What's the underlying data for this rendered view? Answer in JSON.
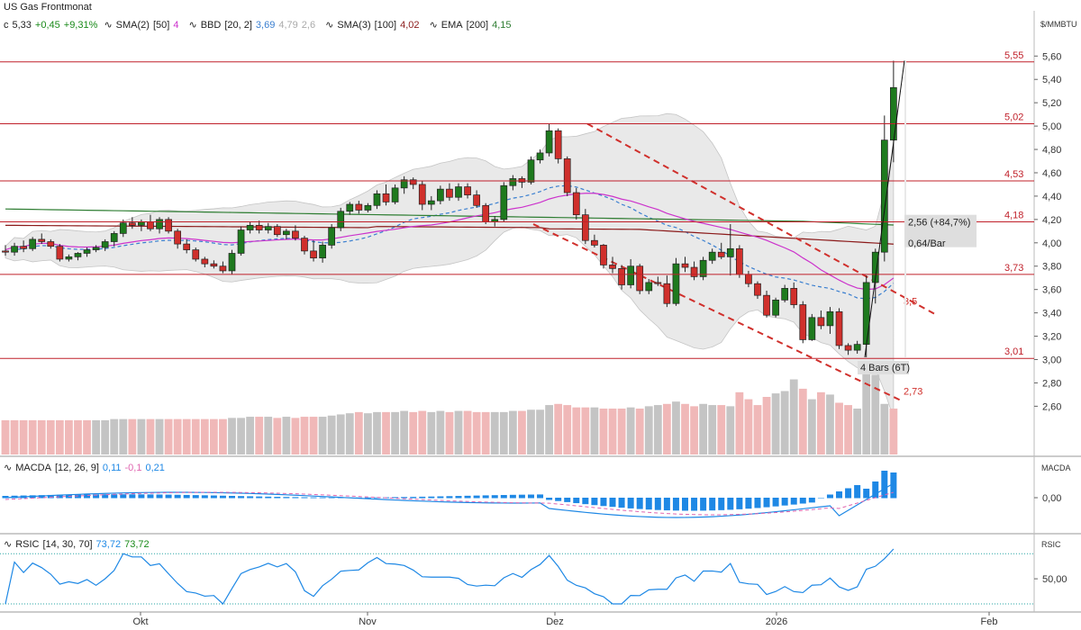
{
  "header": {
    "title": "US Gas Frontmonat",
    "quote_prefix": "c",
    "close": "5,33",
    "change": "+0,45",
    "change_pct": "+9,31%",
    "sma2_label": "SMA(2)",
    "sma2_param": "[50]",
    "sma2_value": "4",
    "bbd_label": "BBD",
    "bbd_param": "[20, 2]",
    "bbd_v1": "3,69",
    "bbd_v2": "4,79",
    "bbd_v3": "2,6",
    "sma3_label": "SMA(3)",
    "sma3_param": "[100]",
    "sma3_value": "4,02",
    "ema_label": "EMA",
    "ema_param": "[200]",
    "ema_value": "4,15",
    "unit": "$/MMBTU"
  },
  "colors": {
    "up": "#1e7a1e",
    "down": "#d0302c",
    "hline": "#c0202a",
    "sma50": "#cc33cc",
    "bb_mid": "#3a7fd0",
    "sma100": "#8b1a1a",
    "ema200": "#2e7d32",
    "vol_up": "#c4c4c4",
    "vol_down": "#f0b8b8",
    "macd_hist": "#1e88e5",
    "macd_signal": "#e066b0",
    "rsi": "#1e88e5",
    "pos_green": "#1a8a1a",
    "neg_red": "#d0302c"
  },
  "price_axis": {
    "ticks": [
      2.6,
      2.8,
      3.0,
      3.2,
      3.4,
      3.6,
      3.8,
      4.0,
      4.2,
      4.4,
      4.6,
      4.8,
      5.0,
      5.2,
      5.4,
      5.6
    ],
    "tick_labels": [
      "2,60",
      "2,80",
      "3,00",
      "3,20",
      "3,40",
      "3,60",
      "3,80",
      "4,00",
      "4,20",
      "4,40",
      "4,60",
      "4,80",
      "5,00",
      "5,20",
      "5,40",
      "5,60"
    ]
  },
  "x_axis": {
    "labels": [
      "Okt",
      "Nov",
      "Dez",
      "2026",
      "Feb"
    ]
  },
  "levels": [
    {
      "value": 5.55,
      "label": "5,55"
    },
    {
      "value": 5.02,
      "label": "5,02"
    },
    {
      "value": 4.53,
      "label": "4,53"
    },
    {
      "value": 4.18,
      "label": "4,18"
    },
    {
      "value": 3.73,
      "label": "3,73"
    },
    {
      "value": 3.01,
      "label": "3,01"
    }
  ],
  "annotations": {
    "move_label": "2,56 (+84,7%)",
    "speed_label": "0,64/Bar",
    "bars_label": "4 Bars (6T)",
    "trend_upper_label": "3,5",
    "trend_lower_label": "2,73"
  },
  "macd_panel": {
    "label": "MACDA",
    "param": "[12, 26, 9]",
    "v1": "0,11",
    "v2": "-0,1",
    "v3": "0,21",
    "axis_title": "MACDA",
    "tick_label": "0,00"
  },
  "rsi_panel": {
    "label": "RSIC",
    "param": "[14, 30, 70]",
    "v1": "73,72",
    "v2": "73,72",
    "axis_title": "RSIC",
    "tick_label": "50,00"
  },
  "chart_data": {
    "type": "candlestick",
    "title": "US Gas Frontmonat",
    "ylabel": "$/MMBTU",
    "ylim": [
      2.45,
      5.65
    ],
    "candles": [
      [
        3.93,
        3.98,
        3.89,
        3.92
      ],
      [
        3.92,
        4.0,
        3.89,
        3.97
      ],
      [
        3.97,
        4.02,
        3.92,
        3.95
      ],
      [
        3.95,
        4.05,
        3.93,
        4.03
      ],
      [
        4.03,
        4.08,
        3.99,
        4.01
      ],
      [
        4.01,
        4.03,
        3.95,
        3.97
      ],
      [
        3.97,
        3.99,
        3.84,
        3.86
      ],
      [
        3.86,
        3.9,
        3.84,
        3.88
      ],
      [
        3.88,
        3.92,
        3.85,
        3.91
      ],
      [
        3.91,
        3.96,
        3.88,
        3.94
      ],
      [
        3.94,
        3.98,
        3.92,
        3.96
      ],
      [
        3.96,
        4.03,
        3.93,
        4.01
      ],
      [
        4.01,
        4.1,
        3.97,
        4.08
      ],
      [
        4.08,
        4.2,
        4.05,
        4.17
      ],
      [
        4.17,
        4.22,
        4.12,
        4.15
      ],
      [
        4.15,
        4.2,
        4.1,
        4.18
      ],
      [
        4.18,
        4.24,
        4.1,
        4.12
      ],
      [
        4.12,
        4.22,
        4.08,
        4.2
      ],
      [
        4.2,
        4.22,
        4.08,
        4.1
      ],
      [
        4.1,
        4.12,
        3.95,
        3.99
      ],
      [
        3.99,
        4.03,
        3.91,
        3.94
      ],
      [
        3.94,
        3.96,
        3.84,
        3.86
      ],
      [
        3.86,
        3.88,
        3.79,
        3.82
      ],
      [
        3.82,
        3.85,
        3.78,
        3.8
      ],
      [
        3.8,
        3.84,
        3.74,
        3.76
      ],
      [
        3.76,
        3.94,
        3.73,
        3.91
      ],
      [
        3.91,
        4.14,
        3.89,
        4.11
      ],
      [
        4.11,
        4.18,
        4.08,
        4.15
      ],
      [
        4.15,
        4.19,
        4.08,
        4.11
      ],
      [
        4.11,
        4.17,
        4.08,
        4.14
      ],
      [
        4.14,
        4.16,
        4.05,
        4.07
      ],
      [
        4.07,
        4.12,
        4.03,
        4.1
      ],
      [
        4.1,
        4.15,
        4.02,
        4.04
      ],
      [
        4.04,
        4.06,
        3.9,
        3.93
      ],
      [
        3.93,
        4.02,
        3.84,
        3.87
      ],
      [
        3.87,
        4.01,
        3.83,
        3.98
      ],
      [
        3.98,
        4.16,
        3.95,
        4.13
      ],
      [
        4.13,
        4.3,
        4.1,
        4.27
      ],
      [
        4.27,
        4.35,
        4.24,
        4.33
      ],
      [
        4.33,
        4.36,
        4.25,
        4.28
      ],
      [
        4.28,
        4.34,
        4.26,
        4.32
      ],
      [
        4.32,
        4.45,
        4.29,
        4.42
      ],
      [
        4.42,
        4.5,
        4.32,
        4.35
      ],
      [
        4.35,
        4.5,
        4.33,
        4.47
      ],
      [
        4.47,
        4.57,
        4.42,
        4.54
      ],
      [
        4.54,
        4.56,
        4.46,
        4.5
      ],
      [
        4.5,
        4.53,
        4.28,
        4.33
      ],
      [
        4.33,
        4.4,
        4.28,
        4.36
      ],
      [
        4.36,
        4.49,
        4.33,
        4.46
      ],
      [
        4.46,
        4.51,
        4.36,
        4.39
      ],
      [
        4.39,
        4.51,
        4.36,
        4.48
      ],
      [
        4.48,
        4.51,
        4.38,
        4.41
      ],
      [
        4.41,
        4.45,
        4.3,
        4.32
      ],
      [
        4.32,
        4.34,
        4.16,
        4.18
      ],
      [
        4.18,
        4.23,
        4.14,
        4.2
      ],
      [
        4.2,
        4.52,
        4.18,
        4.49
      ],
      [
        4.49,
        4.58,
        4.45,
        4.55
      ],
      [
        4.55,
        4.57,
        4.47,
        4.52
      ],
      [
        4.52,
        4.74,
        4.5,
        4.71
      ],
      [
        4.71,
        4.8,
        4.68,
        4.77
      ],
      [
        4.77,
        5.02,
        4.74,
        4.96
      ],
      [
        4.96,
        4.98,
        4.68,
        4.72
      ],
      [
        4.72,
        4.74,
        4.4,
        4.43
      ],
      [
        4.43,
        4.47,
        4.2,
        4.24
      ],
      [
        4.24,
        4.29,
        3.99,
        4.02
      ],
      [
        4.02,
        4.07,
        3.96,
        3.98
      ],
      [
        3.98,
        3.99,
        3.78,
        3.81
      ],
      [
        3.81,
        3.88,
        3.74,
        3.78
      ],
      [
        3.78,
        3.81,
        3.6,
        3.64
      ],
      [
        3.64,
        3.86,
        3.61,
        3.8
      ],
      [
        3.8,
        3.82,
        3.56,
        3.59
      ],
      [
        3.59,
        3.69,
        3.56,
        3.66
      ],
      [
        3.66,
        3.71,
        3.63,
        3.65
      ],
      [
        3.65,
        3.72,
        3.45,
        3.48
      ],
      [
        3.48,
        3.87,
        3.46,
        3.82
      ],
      [
        3.82,
        3.88,
        3.75,
        3.79
      ],
      [
        3.79,
        3.84,
        3.68,
        3.71
      ],
      [
        3.71,
        3.88,
        3.68,
        3.85
      ],
      [
        3.85,
        3.95,
        3.82,
        3.92
      ],
      [
        3.92,
        4.0,
        3.86,
        3.88
      ],
      [
        3.88,
        4.16,
        3.72,
        3.95
      ],
      [
        3.95,
        3.98,
        3.7,
        3.73
      ],
      [
        3.73,
        3.76,
        3.62,
        3.65
      ],
      [
        3.65,
        3.67,
        3.52,
        3.55
      ],
      [
        3.55,
        3.59,
        3.36,
        3.38
      ],
      [
        3.38,
        3.53,
        3.36,
        3.51
      ],
      [
        3.51,
        3.64,
        3.49,
        3.61
      ],
      [
        3.61,
        3.66,
        3.44,
        3.47
      ],
      [
        3.47,
        3.5,
        3.14,
        3.17
      ],
      [
        3.17,
        3.39,
        3.16,
        3.36
      ],
      [
        3.36,
        3.42,
        3.26,
        3.29
      ],
      [
        3.29,
        3.45,
        3.22,
        3.41
      ],
      [
        3.41,
        3.44,
        3.09,
        3.12
      ],
      [
        3.12,
        3.14,
        3.04,
        3.08
      ],
      [
        3.08,
        3.16,
        3.05,
        3.13
      ],
      [
        3.13,
        3.72,
        3.02,
        3.66
      ],
      [
        3.66,
        3.95,
        3.48,
        3.92
      ],
      [
        3.92,
        5.09,
        3.84,
        4.88
      ],
      [
        4.88,
        5.56,
        4.69,
        5.33
      ]
    ],
    "volume": [
      [
        2.48,
        0
      ],
      [
        2.48,
        0
      ],
      [
        2.48,
        0
      ],
      [
        2.48,
        0
      ],
      [
        2.48,
        0
      ],
      [
        2.48,
        0
      ],
      [
        2.48,
        0
      ],
      [
        2.48,
        0
      ],
      [
        2.48,
        0
      ],
      [
        2.48,
        0
      ],
      [
        2.48,
        1
      ],
      [
        2.48,
        1
      ],
      [
        2.49,
        1
      ],
      [
        2.49,
        1
      ],
      [
        2.49,
        0
      ],
      [
        2.49,
        1
      ],
      [
        2.49,
        0
      ],
      [
        2.49,
        1
      ],
      [
        2.49,
        0
      ],
      [
        2.49,
        0
      ],
      [
        2.49,
        0
      ],
      [
        2.49,
        0
      ],
      [
        2.49,
        0
      ],
      [
        2.49,
        0
      ],
      [
        2.49,
        0
      ],
      [
        2.5,
        1
      ],
      [
        2.5,
        1
      ],
      [
        2.51,
        1
      ],
      [
        2.51,
        0
      ],
      [
        2.51,
        1
      ],
      [
        2.5,
        0
      ],
      [
        2.51,
        1
      ],
      [
        2.5,
        0
      ],
      [
        2.51,
        0
      ],
      [
        2.51,
        0
      ],
      [
        2.51,
        1
      ],
      [
        2.52,
        1
      ],
      [
        2.53,
        1
      ],
      [
        2.54,
        1
      ],
      [
        2.55,
        0
      ],
      [
        2.54,
        1
      ],
      [
        2.55,
        1
      ],
      [
        2.55,
        0
      ],
      [
        2.55,
        1
      ],
      [
        2.56,
        1
      ],
      [
        2.55,
        0
      ],
      [
        2.56,
        0
      ],
      [
        2.55,
        1
      ],
      [
        2.56,
        1
      ],
      [
        2.55,
        0
      ],
      [
        2.56,
        1
      ],
      [
        2.56,
        0
      ],
      [
        2.55,
        0
      ],
      [
        2.55,
        0
      ],
      [
        2.55,
        1
      ],
      [
        2.55,
        1
      ],
      [
        2.56,
        1
      ],
      [
        2.56,
        0
      ],
      [
        2.57,
        1
      ],
      [
        2.57,
        1
      ],
      [
        2.61,
        1
      ],
      [
        2.62,
        0
      ],
      [
        2.61,
        0
      ],
      [
        2.59,
        0
      ],
      [
        2.59,
        0
      ],
      [
        2.59,
        1
      ],
      [
        2.58,
        0
      ],
      [
        2.58,
        0
      ],
      [
        2.58,
        0
      ],
      [
        2.59,
        1
      ],
      [
        2.58,
        0
      ],
      [
        2.6,
        1
      ],
      [
        2.61,
        1
      ],
      [
        2.62,
        0
      ],
      [
        2.64,
        1
      ],
      [
        2.62,
        0
      ],
      [
        2.6,
        0
      ],
      [
        2.62,
        1
      ],
      [
        2.61,
        1
      ],
      [
        2.61,
        0
      ],
      [
        2.6,
        1
      ],
      [
        2.72,
        0
      ],
      [
        2.66,
        0
      ],
      [
        2.61,
        0
      ],
      [
        2.68,
        0
      ],
      [
        2.71,
        1
      ],
      [
        2.73,
        1
      ],
      [
        2.83,
        1
      ],
      [
        2.75,
        0
      ],
      [
        2.66,
        1
      ],
      [
        2.72,
        0
      ],
      [
        2.7,
        1
      ],
      [
        2.63,
        0
      ],
      [
        2.61,
        0
      ],
      [
        2.58,
        1
      ],
      [
        2.95,
        1
      ],
      [
        2.87,
        1
      ],
      [
        2.62,
        1
      ],
      [
        2.58,
        0
      ]
    ],
    "series_labels": [
      "SMA(2) [50]",
      "BBD [20, 2]",
      "SMA(3) [100]",
      "EMA [200]"
    ]
  }
}
